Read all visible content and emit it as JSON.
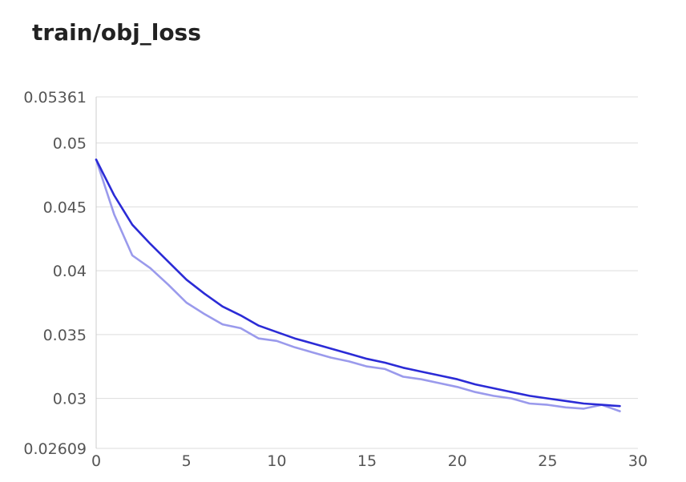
{
  "chart_data": {
    "type": "line",
    "title": "train/obj_loss",
    "xlabel": "",
    "ylabel": "",
    "xlim": [
      0,
      30
    ],
    "ylim": [
      0.02609,
      0.05361
    ],
    "x_ticks": [
      "0",
      "5",
      "10",
      "15",
      "20",
      "25",
      "30"
    ],
    "y_ticks": [
      "0.05361",
      "0.05",
      "0.045",
      "0.04",
      "0.035",
      "0.03",
      "0.02609"
    ],
    "grid": true,
    "series": [
      {
        "color": "#2b2bd6",
        "x": [
          0,
          1,
          2,
          3,
          4,
          5,
          6,
          7,
          8,
          9,
          10,
          11,
          12,
          13,
          14,
          15,
          16,
          17,
          18,
          19,
          20,
          21,
          22,
          23,
          24,
          25,
          26,
          27,
          28,
          29
        ],
        "values": [
          0.0487,
          0.0459,
          0.0436,
          0.0421,
          0.0407,
          0.0393,
          0.0382,
          0.0372,
          0.0365,
          0.0357,
          0.0352,
          0.0347,
          0.0343,
          0.0339,
          0.0335,
          0.0331,
          0.0328,
          0.0324,
          0.0321,
          0.0318,
          0.0315,
          0.0311,
          0.0308,
          0.0305,
          0.0302,
          0.03,
          0.0298,
          0.0296,
          0.0295,
          0.0294
        ]
      },
      {
        "color": "#9a9aec",
        "x": [
          0,
          1,
          2,
          3,
          4,
          5,
          6,
          7,
          8,
          9,
          10,
          11,
          12,
          13,
          14,
          15,
          16,
          17,
          18,
          19,
          20,
          21,
          22,
          23,
          24,
          25,
          26,
          27,
          28,
          29
        ],
        "values": [
          0.0487,
          0.0444,
          0.0412,
          0.0402,
          0.0389,
          0.0375,
          0.0366,
          0.0358,
          0.0355,
          0.0347,
          0.0345,
          0.034,
          0.0336,
          0.0332,
          0.0329,
          0.0325,
          0.0323,
          0.0317,
          0.0315,
          0.0312,
          0.0309,
          0.0305,
          0.0302,
          0.03,
          0.0296,
          0.0295,
          0.0293,
          0.0292,
          0.0295,
          0.029
        ]
      }
    ]
  }
}
